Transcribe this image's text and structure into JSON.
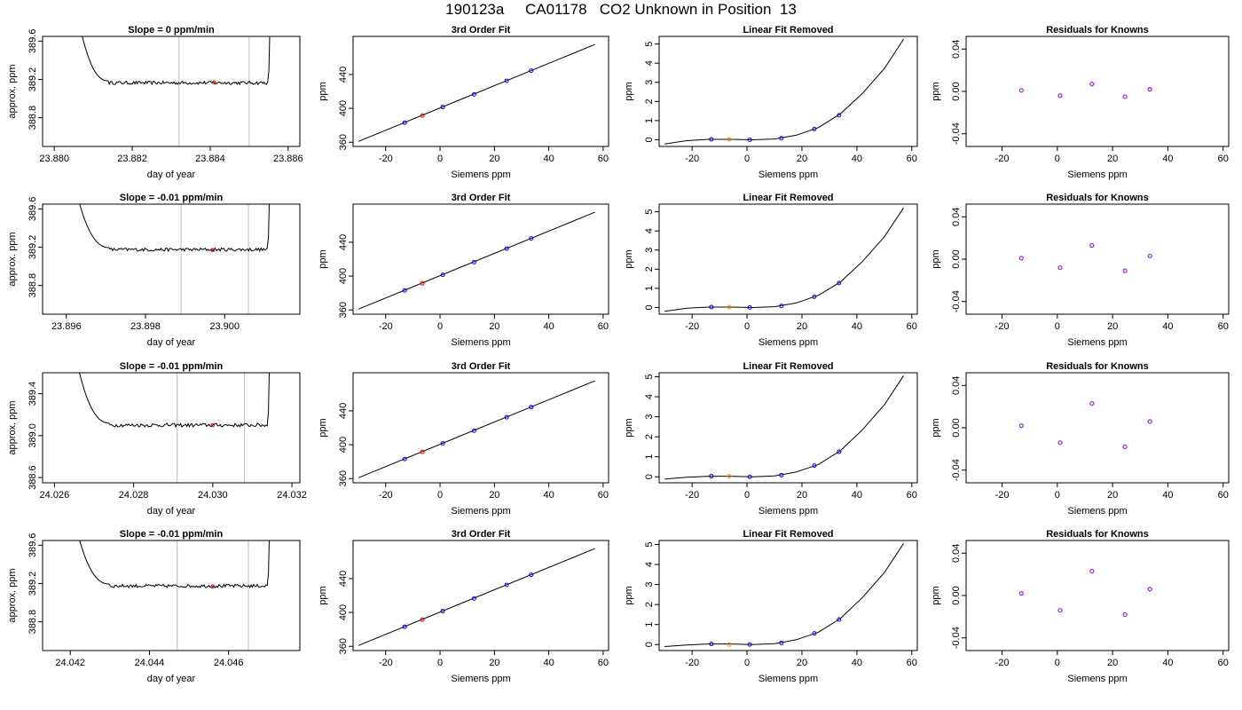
{
  "figure": {
    "title": "190123a     CA01178   CO2 Unknown in Position  13",
    "colors": {
      "trace": "#000000",
      "cursor_lines": "#bdbdbd",
      "known_points": "#0000ff",
      "unknown_point": "#ff0000",
      "unknown_point_removed": "#ff8c00",
      "residual_points": "#a020f0"
    }
  },
  "chart_data": [
    {
      "type": "line",
      "panel": "Row 1 trace",
      "title": "Slope =  0  ppm/min",
      "xlabel": "day of year",
      "ylabel": "approx. ppm",
      "xlim": [
        23.8797,
        23.8863
      ],
      "ylim": [
        388.5,
        389.65
      ],
      "xticks": [
        "23.880",
        "23.882",
        "23.884",
        "23.886"
      ],
      "xtick_values": [
        23.88,
        23.882,
        23.884,
        23.886
      ],
      "yticks": [
        "388.8",
        "389.2",
        "389.6"
      ],
      "ytick_values": [
        388.8,
        389.2,
        389.6
      ],
      "vlines": [
        23.8832,
        23.885
      ],
      "baseline": 389.165,
      "x_start": 23.8806,
      "x_end": 23.8856,
      "plateau_start": 23.8814,
      "plateau_end": 23.8855,
      "unknown_point": {
        "x": 23.8841,
        "y": 389.17
      },
      "grid": false
    },
    {
      "type": "scatter",
      "panel": "Row 1 fit",
      "title": "3rd Order Fit",
      "xlabel": "Siemens ppm",
      "ylabel": "ppm",
      "xlim": [
        -32,
        62
      ],
      "ylim": [
        355,
        485
      ],
      "xticks": [
        "-20",
        "0",
        "20",
        "40",
        "60"
      ],
      "xtick_values": [
        -20,
        0,
        20,
        40,
        60
      ],
      "yticks": [
        "360",
        "400",
        "440"
      ],
      "ytick_values": [
        360,
        400,
        440
      ],
      "line": {
        "x": [
          -30,
          57
        ],
        "y": [
          361.0,
          475.5
        ]
      },
      "known_points": {
        "x": [
          -13,
          1,
          12.5,
          24.5,
          33.5
        ],
        "y": [
          383.0,
          401.5,
          416.5,
          432.5,
          444.5
        ]
      },
      "unknown_point": {
        "x": -6.5,
        "y": 391.5
      }
    },
    {
      "type": "line",
      "panel": "Row 1 linear fit removed",
      "title": "Linear Fit Removed",
      "xlabel": "Siemens ppm",
      "ylabel": "ppm",
      "xlim": [
        -32,
        62
      ],
      "ylim": [
        -0.35,
        5.4
      ],
      "xticks": [
        "-20",
        "0",
        "20",
        "40",
        "60"
      ],
      "xtick_values": [
        -20,
        0,
        20,
        40,
        60
      ],
      "yticks": [
        "0",
        "1",
        "2",
        "3",
        "4",
        "5"
      ],
      "ytick_values": [
        0,
        1,
        2,
        3,
        4,
        5
      ],
      "curve": {
        "x": [
          -30,
          -22,
          -14,
          -6,
          2,
          10,
          18,
          26,
          34,
          42,
          50,
          57
        ],
        "y": [
          -0.22,
          -0.05,
          0.02,
          0.02,
          0.0,
          0.04,
          0.24,
          0.64,
          1.35,
          2.42,
          3.72,
          5.25
        ]
      },
      "known_points": {
        "x": [
          -13,
          1,
          12.5,
          24.5,
          33.5
        ],
        "y": [
          0.02,
          0.0,
          0.08,
          0.56,
          1.28
        ]
      },
      "unknown_point": {
        "x": -6.5,
        "y": 0.02
      }
    },
    {
      "type": "scatter",
      "panel": "Row 1 residuals",
      "title": "Residuals for Knowns",
      "xlabel": "Siemens ppm",
      "ylabel": "ppm",
      "xlim": [
        -33,
        62
      ],
      "ylim": [
        -0.052,
        0.052
      ],
      "xticks": [
        "-20",
        "0",
        "20",
        "40",
        "60"
      ],
      "xtick_values": [
        -20,
        0,
        20,
        40,
        60
      ],
      "yticks": [
        "-0.04",
        "0.00",
        "0.04"
      ],
      "ytick_values": [
        -0.04,
        0.0,
        0.04
      ],
      "points": {
        "x": [
          -13,
          1,
          12.5,
          24.5,
          33.5
        ],
        "y": [
          0.001,
          -0.004,
          0.007,
          -0.005,
          0.002
        ]
      }
    },
    {
      "type": "line",
      "panel": "Row 2 trace",
      "title": "Slope =  -0.01  ppm/min",
      "xlabel": "day of year",
      "ylabel": "approx. ppm",
      "xlim": [
        23.8954,
        23.9019
      ],
      "ylim": [
        388.5,
        389.65
      ],
      "xticks": [
        "23.896",
        "23.898",
        "23.900"
      ],
      "xtick_values": [
        23.896,
        23.898,
        23.9
      ],
      "yticks": [
        "388.8",
        "389.2",
        "389.6"
      ],
      "ytick_values": [
        388.8,
        389.2,
        389.6
      ],
      "vlines": [
        23.8989,
        23.9006
      ],
      "baseline": 389.175,
      "x_start": 23.8962,
      "x_end": 23.9012,
      "plateau_start": 23.8971,
      "plateau_end": 23.9011,
      "unknown_point": {
        "x": 23.8997,
        "y": 389.17
      },
      "grid": false
    },
    {
      "type": "scatter",
      "panel": "Row 2 fit",
      "title": "3rd Order Fit",
      "xlabel": "Siemens ppm",
      "ylabel": "ppm",
      "xlim": [
        -32,
        62
      ],
      "ylim": [
        355,
        485
      ],
      "xticks": [
        "-20",
        "0",
        "20",
        "40",
        "60"
      ],
      "xtick_values": [
        -20,
        0,
        20,
        40,
        60
      ],
      "yticks": [
        "360",
        "400",
        "440"
      ],
      "ytick_values": [
        360,
        400,
        440
      ],
      "line": {
        "x": [
          -30,
          57
        ],
        "y": [
          361.0,
          475.5
        ]
      },
      "known_points": {
        "x": [
          -13,
          1,
          12.5,
          24.5,
          33.5
        ],
        "y": [
          383.0,
          401.5,
          416.5,
          432.5,
          444.5
        ]
      },
      "unknown_point": {
        "x": -6.5,
        "y": 391.5
      }
    },
    {
      "type": "line",
      "panel": "Row 2 linear fit removed",
      "title": "Linear Fit Removed",
      "xlabel": "Siemens ppm",
      "ylabel": "ppm",
      "xlim": [
        -32,
        62
      ],
      "ylim": [
        -0.35,
        5.4
      ],
      "xticks": [
        "-20",
        "0",
        "20",
        "40",
        "60"
      ],
      "xtick_values": [
        -20,
        0,
        20,
        40,
        60
      ],
      "yticks": [
        "0",
        "1",
        "2",
        "3",
        "4",
        "5"
      ],
      "ytick_values": [
        0,
        1,
        2,
        3,
        4,
        5
      ],
      "curve": {
        "x": [
          -30,
          -22,
          -14,
          -6,
          2,
          10,
          18,
          26,
          34,
          42,
          50,
          57
        ],
        "y": [
          -0.2,
          -0.04,
          0.02,
          0.02,
          0.0,
          0.04,
          0.24,
          0.64,
          1.33,
          2.4,
          3.7,
          5.2
        ]
      },
      "known_points": {
        "x": [
          -13,
          1,
          12.5,
          24.5,
          33.5
        ],
        "y": [
          0.02,
          0.0,
          0.08,
          0.56,
          1.28
        ]
      },
      "unknown_point": {
        "x": -6.5,
        "y": 0.02
      }
    },
    {
      "type": "scatter",
      "panel": "Row 2 residuals",
      "title": "Residuals for Knowns",
      "xlabel": "Siemens ppm",
      "ylabel": "ppm",
      "xlim": [
        -33,
        62
      ],
      "ylim": [
        -0.052,
        0.052
      ],
      "xticks": [
        "-20",
        "0",
        "20",
        "40",
        "60"
      ],
      "xtick_values": [
        -20,
        0,
        20,
        40,
        60
      ],
      "yticks": [
        "-0.04",
        "0.00",
        "0.04"
      ],
      "ytick_values": [
        -0.04,
        0.0,
        0.04
      ],
      "points": {
        "x": [
          -13,
          1,
          12.5,
          24.5,
          33.5
        ],
        "y": [
          0.001,
          -0.008,
          0.013,
          -0.011,
          0.003
        ]
      }
    },
    {
      "type": "line",
      "panel": "Row 3 trace",
      "title": "Slope =  -0.01  ppm/min",
      "xlabel": "day of year",
      "ylabel": "approx. ppm",
      "xlim": [
        24.0257,
        24.0322
      ],
      "ylim": [
        388.55,
        389.6
      ],
      "xticks": [
        "24.026",
        "24.028",
        "24.030",
        "24.032"
      ],
      "xtick_values": [
        24.026,
        24.028,
        24.03,
        24.032
      ],
      "yticks": [
        "388.6",
        "389.0",
        "389.4"
      ],
      "ytick_values": [
        388.6,
        389.0,
        389.4
      ],
      "vlines": [
        24.0291,
        24.0308
      ],
      "baseline": 389.1,
      "x_start": 24.0265,
      "x_end": 24.0315,
      "plateau_start": 24.0274,
      "plateau_end": 24.0314,
      "unknown_point": {
        "x": 24.03,
        "y": 389.1
      },
      "grid": false
    },
    {
      "type": "scatter",
      "panel": "Row 3 fit",
      "title": "3rd Order Fit",
      "xlabel": "Siemens ppm",
      "ylabel": "ppm",
      "xlim": [
        -32,
        62
      ],
      "ylim": [
        355,
        485
      ],
      "xticks": [
        "-20",
        "0",
        "20",
        "40",
        "60"
      ],
      "xtick_values": [
        -20,
        0,
        20,
        40,
        60
      ],
      "yticks": [
        "360",
        "400",
        "440"
      ],
      "ytick_values": [
        360,
        400,
        440
      ],
      "line": {
        "x": [
          -30,
          57
        ],
        "y": [
          361.0,
          475.5
        ]
      },
      "known_points": {
        "x": [
          -13,
          1,
          12.5,
          24.5,
          33.5
        ],
        "y": [
          383.0,
          401.5,
          416.5,
          432.5,
          444.5
        ]
      },
      "unknown_point": {
        "x": -6.5,
        "y": 391.5
      }
    },
    {
      "type": "line",
      "panel": "Row 3 linear fit removed",
      "title": "Linear Fit Removed",
      "xlabel": "Siemens ppm",
      "ylabel": "ppm",
      "xlim": [
        -32,
        62
      ],
      "ylim": [
        -0.3,
        5.2
      ],
      "xticks": [
        "-20",
        "0",
        "20",
        "40",
        "60"
      ],
      "xtick_values": [
        -20,
        0,
        20,
        40,
        60
      ],
      "yticks": [
        "0",
        "1",
        "2",
        "3",
        "4",
        "5"
      ],
      "ytick_values": [
        0,
        1,
        2,
        3,
        4,
        5
      ],
      "curve": {
        "x": [
          -30,
          -22,
          -14,
          -6,
          2,
          10,
          18,
          26,
          34,
          42,
          50,
          57
        ],
        "y": [
          -0.12,
          -0.02,
          0.03,
          0.03,
          0.0,
          0.04,
          0.24,
          0.62,
          1.3,
          2.35,
          3.6,
          5.05
        ]
      },
      "known_points": {
        "x": [
          -13,
          1,
          12.5,
          24.5,
          33.5
        ],
        "y": [
          0.03,
          0.0,
          0.08,
          0.56,
          1.25
        ]
      },
      "unknown_point": {
        "x": -6.5,
        "y": 0.03
      }
    },
    {
      "type": "scatter",
      "panel": "Row 3 residuals",
      "title": "Residuals for Knowns",
      "xlabel": "Siemens ppm",
      "ylabel": "ppm",
      "xlim": [
        -33,
        62
      ],
      "ylim": [
        -0.052,
        0.052
      ],
      "xticks": [
        "-20",
        "0",
        "20",
        "40",
        "60"
      ],
      "xtick_values": [
        -20,
        0,
        20,
        40,
        60
      ],
      "yticks": [
        "-0.04",
        "0.00",
        "0.04"
      ],
      "ytick_values": [
        -0.04,
        0.0,
        0.04
      ],
      "points": {
        "x": [
          -13,
          1,
          12.5,
          24.5,
          33.5
        ],
        "y": [
          0.002,
          -0.014,
          0.023,
          -0.018,
          0.006
        ]
      }
    },
    {
      "type": "line",
      "panel": "Row 4 trace",
      "title": "Slope =  -0.01  ppm/min",
      "xlabel": "day of year",
      "ylabel": "approx. ppm",
      "xlim": [
        24.0413,
        24.0478
      ],
      "ylim": [
        388.5,
        389.65
      ],
      "xticks": [
        "24.042",
        "24.044",
        "24.046"
      ],
      "xtick_values": [
        24.042,
        24.044,
        24.046
      ],
      "yticks": [
        "388.8",
        "389.2",
        "389.6"
      ],
      "ytick_values": [
        388.8,
        389.2,
        389.6
      ],
      "vlines": [
        24.0447,
        24.0465
      ],
      "baseline": 389.175,
      "x_start": 24.0421,
      "x_end": 24.0471,
      "plateau_start": 24.043,
      "plateau_end": 24.047,
      "unknown_point": {
        "x": 24.0456,
        "y": 389.17
      },
      "grid": false
    },
    {
      "type": "scatter",
      "panel": "Row 4 fit",
      "title": "3rd Order Fit",
      "xlabel": "Siemens ppm",
      "ylabel": "ppm",
      "xlim": [
        -32,
        62
      ],
      "ylim": [
        355,
        485
      ],
      "xticks": [
        "-20",
        "0",
        "20",
        "40",
        "60"
      ],
      "xtick_values": [
        -20,
        0,
        20,
        40,
        60
      ],
      "yticks": [
        "360",
        "400",
        "440"
      ],
      "ytick_values": [
        360,
        400,
        440
      ],
      "line": {
        "x": [
          -30,
          57
        ],
        "y": [
          361.0,
          475.5
        ]
      },
      "known_points": {
        "x": [
          -13,
          1,
          12.5,
          24.5,
          33.5
        ],
        "y": [
          383.0,
          401.5,
          416.5,
          432.5,
          444.5
        ]
      },
      "unknown_point": {
        "x": -6.5,
        "y": 391.5
      }
    },
    {
      "type": "line",
      "panel": "Row 4 linear fit removed",
      "title": "Linear Fit Removed",
      "xlabel": "Siemens ppm",
      "ylabel": "ppm",
      "xlim": [
        -32,
        62
      ],
      "ylim": [
        -0.3,
        5.2
      ],
      "xticks": [
        "-20",
        "0",
        "20",
        "40",
        "60"
      ],
      "xtick_values": [
        -20,
        0,
        20,
        40,
        60
      ],
      "yticks": [
        "0",
        "1",
        "2",
        "3",
        "4",
        "5"
      ],
      "ytick_values": [
        0,
        1,
        2,
        3,
        4,
        5
      ],
      "curve": {
        "x": [
          -30,
          -22,
          -14,
          -6,
          2,
          10,
          18,
          26,
          34,
          42,
          50,
          57
        ],
        "y": [
          -0.1,
          -0.02,
          0.03,
          0.03,
          0.0,
          0.04,
          0.24,
          0.62,
          1.3,
          2.35,
          3.6,
          5.05
        ]
      },
      "known_points": {
        "x": [
          -13,
          1,
          12.5,
          24.5,
          33.5
        ],
        "y": [
          0.03,
          0.0,
          0.08,
          0.56,
          1.25
        ]
      },
      "unknown_point": {
        "x": -6.5,
        "y": 0.0
      }
    },
    {
      "type": "scatter",
      "panel": "Row 4 residuals",
      "title": "Residuals for Knowns",
      "xlabel": "Siemens ppm",
      "ylabel": "ppm",
      "xlim": [
        -33,
        62
      ],
      "ylim": [
        -0.052,
        0.052
      ],
      "xticks": [
        "-20",
        "0",
        "20",
        "40",
        "60"
      ],
      "xtick_values": [
        -20,
        0,
        20,
        40,
        60
      ],
      "yticks": [
        "-0.04",
        "0.00",
        "0.04"
      ],
      "ytick_values": [
        -0.04,
        0.0,
        0.04
      ],
      "points": {
        "x": [
          -13,
          1,
          12.5,
          24.5,
          33.5
        ],
        "y": [
          0.002,
          -0.014,
          0.023,
          -0.018,
          0.006
        ]
      }
    }
  ]
}
